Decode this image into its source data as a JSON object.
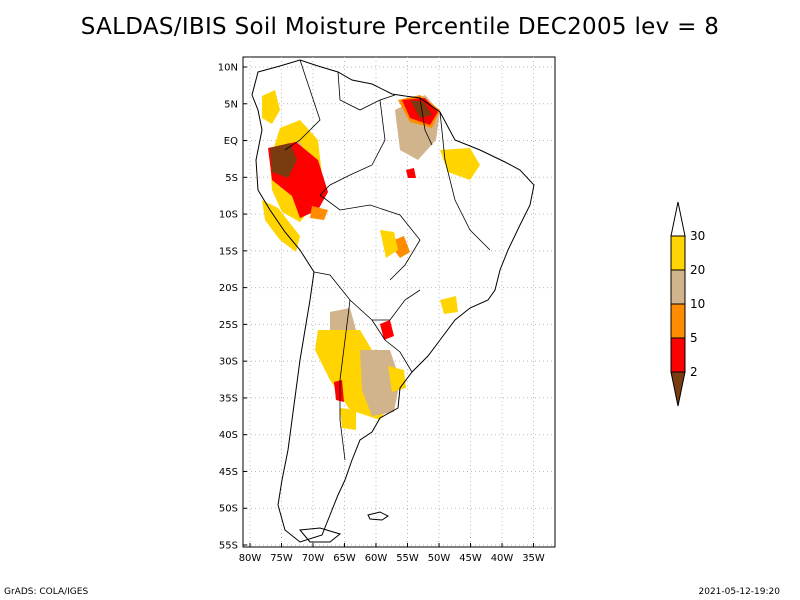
{
  "title": "SALDAS/IBIS Soil Moisture Percentile DEC2005 lev = 8",
  "lat_labels": [
    "10N",
    "5N",
    "EQ",
    "5S",
    "10S",
    "15S",
    "20S",
    "25S",
    "30S",
    "35S",
    "40S",
    "45S",
    "50S",
    "55S"
  ],
  "lon_labels": [
    "80W",
    "75W",
    "70W",
    "65W",
    "60W",
    "55W",
    "50W",
    "45W",
    "40W",
    "35W"
  ],
  "colorbar": {
    "colors": [
      "#7a3b10",
      "#ff0000",
      "#ff8c00",
      "#d2b48c",
      "#ffd400",
      "#ffffff"
    ],
    "labels": [
      "2",
      "5",
      "10",
      "20",
      "30"
    ]
  },
  "footer": {
    "left": "GrADS: COLA/IGES",
    "right": "2021-05-12-19:20"
  }
}
